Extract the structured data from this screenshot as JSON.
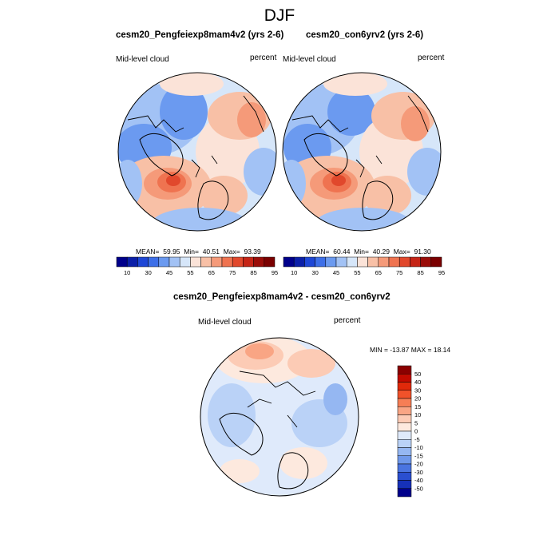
{
  "title": "DJF",
  "panels": [
    {
      "title": "cesm20_Pengfeiexp8mam4v2 (yrs 2-6)",
      "variable": "Mid-level cloud",
      "units": "percent",
      "stats": {
        "mean_label": "MEAN=",
        "mean": "59.95",
        "min_label": "Min=",
        "min": "40.51",
        "max_label": "Max=",
        "max": "93.39"
      }
    },
    {
      "title": "cesm20_con6yrv2 (yrs 2-6)",
      "variable": "Mid-level cloud",
      "units": "percent",
      "stats": {
        "mean_label": "MEAN=",
        "mean": "60.44",
        "min_label": "Min=",
        "min": "40.29",
        "max_label": "Max=",
        "max": "91.30"
      }
    },
    {
      "title": "cesm20_Pengfeiexp8mam4v2 - cesm20_con6yrv2",
      "variable": "Mid-level cloud",
      "units": "percent",
      "stats_text": "MIN = -13.87 MAX =  18.14"
    }
  ],
  "abs_colorbar": {
    "labels": [
      "10",
      "30",
      "45",
      "55",
      "65",
      "75",
      "85",
      "95"
    ],
    "colors": [
      "#00008b",
      "#0b1fa8",
      "#1e47d6",
      "#3d6fe8",
      "#6b9af0",
      "#a2c2f5",
      "#d6e6f9",
      "#fbe3d8",
      "#f8c0a6",
      "#f59a79",
      "#ef7350",
      "#e1482c",
      "#c52416",
      "#9a0c08",
      "#7a0000"
    ]
  },
  "diff_colorbar": {
    "labels": [
      "50",
      "40",
      "30",
      "20",
      "15",
      "10",
      "5",
      "0",
      "-5",
      "-10",
      "-15",
      "-20",
      "-30",
      "-40",
      "-50"
    ],
    "colors": [
      "#8b0000",
      "#c20b00",
      "#e0290a",
      "#f0522a",
      "#f67e55",
      "#f9a584",
      "#fccbb5",
      "#fde9de",
      "#dfeafb",
      "#bad2f7",
      "#95b7f2",
      "#6f98ea",
      "#4a74e0",
      "#2a4fd0",
      "#1631b8",
      "#00008b"
    ]
  }
}
